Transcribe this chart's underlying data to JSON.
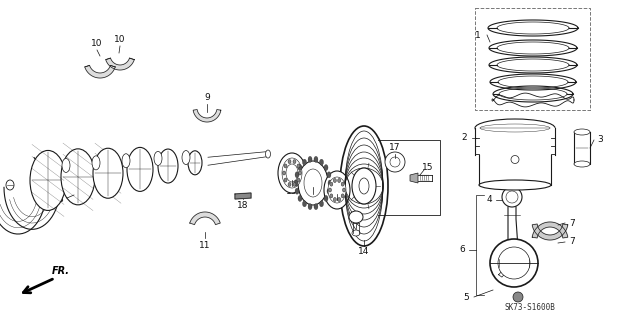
{
  "bg_color": "#ffffff",
  "fig_width": 6.4,
  "fig_height": 3.19,
  "dpi": 100,
  "line_color": "#1a1a1a",
  "diagram_ref": "SK73-S1600B",
  "part_number_fontsize": 6.5,
  "label_color": "#111111"
}
